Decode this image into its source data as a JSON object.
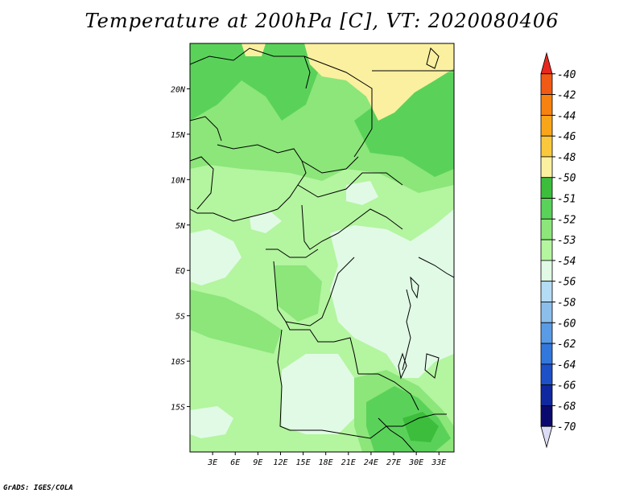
{
  "title": "Temperature at 200hPa [C], VT: 2020080406",
  "credit": "GrADS: IGES/COLA",
  "map": {
    "lon_range": [
      0,
      35
    ],
    "lat_range": [
      -20,
      25
    ],
    "lat_labels": [
      "20N",
      "15N",
      "10N",
      "5N",
      "EQ",
      "5S",
      "10S",
      "15S"
    ],
    "lat_values": [
      20,
      15,
      10,
      5,
      0,
      -5,
      -10,
      -15
    ],
    "lon_labels": [
      "3E",
      "6E",
      "9E",
      "12E",
      "15E",
      "18E",
      "21E",
      "24E",
      "27E",
      "30E",
      "33E"
    ],
    "lon_values": [
      3,
      6,
      9,
      12,
      15,
      18,
      21,
      24,
      27,
      30,
      33
    ]
  },
  "colorbar": {
    "labels": [
      "-40",
      "-42",
      "-44",
      "-46",
      "-48",
      "-50",
      "-51",
      "-52",
      "-53",
      "-54",
      "-56",
      "-58",
      "-60",
      "-62",
      "-64",
      "-66",
      "-68",
      "-70"
    ],
    "colors": [
      "#e8281e",
      "#f05a14",
      "#f7820f",
      "#f9a51a",
      "#fac83c",
      "#faf0a0",
      "#3cbe3c",
      "#5ad25a",
      "#8ce67a",
      "#b4f5a0",
      "#e1fae6",
      "#b4dcf5",
      "#8cbeeb",
      "#5a9be6",
      "#3278dc",
      "#1e50c8",
      "#0f28a0",
      "#0a0a6e",
      "#dcdcf5"
    ]
  }
}
